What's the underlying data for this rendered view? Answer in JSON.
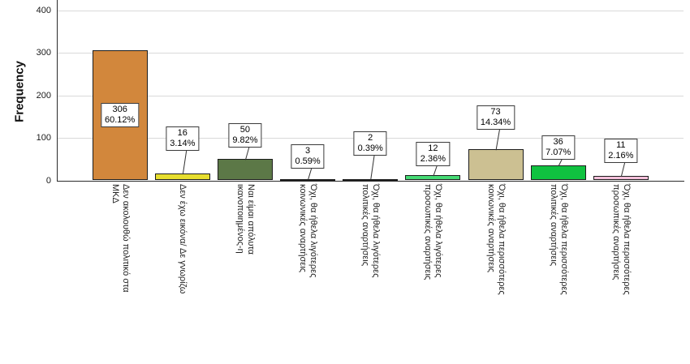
{
  "chart_data": {
    "type": "bar",
    "title": "",
    "xlabel": "",
    "ylabel": "Frequency",
    "yticks": [
      0,
      100,
      200,
      300,
      400
    ],
    "ylim": [
      0,
      425
    ],
    "grid": true,
    "legend": "none",
    "categories": [
      [
        "Δεν ακολουθώ πολιτικό στα",
        "ΜΚΔ"
      ],
      [
        "Δεν έχω εικόνα/ Δε γνωρίζω"
      ],
      [
        "Ναι είμαι απόλυτα",
        "ικανοποιημένος-η"
      ],
      [
        "Όχι, θα ήθελα λιγότερες",
        "κοινωνικές αναρτήσεις"
      ],
      [
        "Όχι, θα ήθελα λιγότερες",
        "πολιτικές αναρτήσεις"
      ],
      [
        "Όχι, θα ήθελα λιγότερες",
        "προσωπικές αναρτήσεις"
      ],
      [
        "Όχι, θα ήθελα περισσότερες",
        "κοινωνικές αναρτήσεις"
      ],
      [
        "Όχι, θα ήθελα περισσότερες",
        "πολιτικές αναρτήσεις"
      ],
      [
        "Όχι, θα ήθελα περισσότερες",
        "προσωπικές αναρτήσεις"
      ]
    ],
    "values": [
      306,
      16,
      50,
      3,
      2,
      12,
      73,
      36,
      11
    ],
    "percents": [
      "60.12%",
      "3.14%",
      "9.82%",
      "0.59%",
      "0.39%",
      "2.36%",
      "14.34%",
      "7.07%",
      "2.16%"
    ],
    "bar_colors": [
      "#D2873C",
      "#E7DE2E",
      "#5C7847",
      "#5A322C",
      "#171717",
      "#45DB74",
      "#CCC092",
      "#10C240",
      "#F4BFDA"
    ],
    "grid_color": "#d9d9d9",
    "axis_color": "#2b2b2b",
    "callout_bg": "#ffffff",
    "callout_border": "#3a3a3a"
  }
}
